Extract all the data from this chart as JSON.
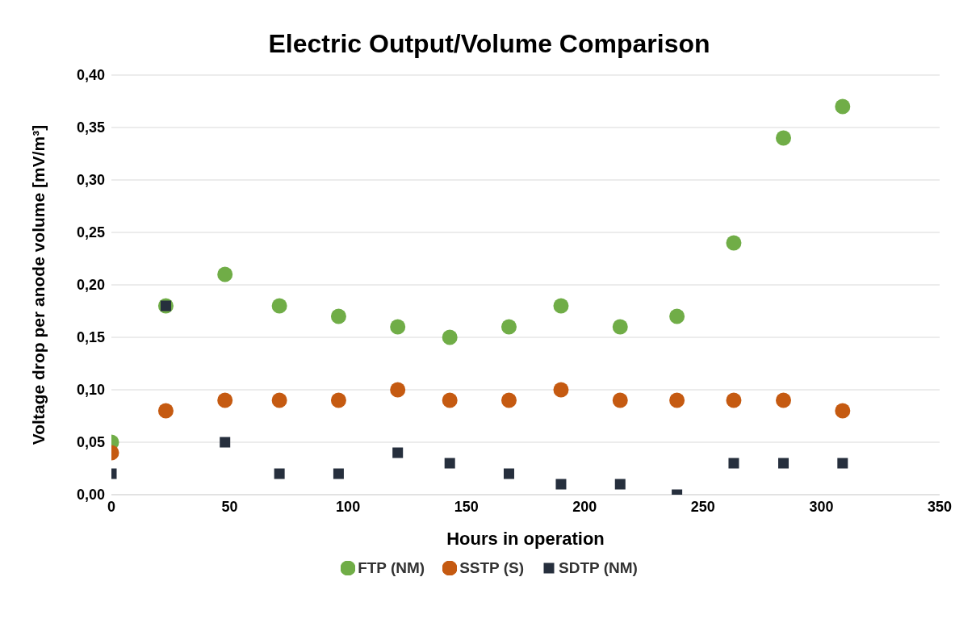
{
  "chart_data": {
    "type": "scatter",
    "title": "Electric Output/Volume Comparison",
    "xlabel": "Hours in operation",
    "ylabel": "Voltage drop per anode volume [mV/m³]",
    "x": [
      0,
      23,
      48,
      71,
      96,
      121,
      143,
      168,
      190,
      215,
      239,
      263,
      284,
      309
    ],
    "series": [
      {
        "name": "FTP (NM)",
        "color": "#70ad47",
        "marker": "circle",
        "values": [
          0.05,
          0.18,
          0.21,
          0.18,
          0.17,
          0.16,
          0.15,
          0.16,
          0.18,
          0.16,
          0.17,
          0.24,
          0.34,
          0.37
        ]
      },
      {
        "name": "SSTP (S)",
        "color": "#c55a11",
        "marker": "circle",
        "values": [
          0.04,
          0.08,
          0.09,
          0.09,
          0.09,
          0.1,
          0.09,
          0.09,
          0.1,
          0.09,
          0.09,
          0.09,
          0.09,
          0.08
        ]
      },
      {
        "name": "SDTP (NM)",
        "color": "#262f3d",
        "marker": "square",
        "values": [
          0.02,
          0.18,
          0.05,
          0.02,
          0.02,
          0.04,
          0.03,
          0.02,
          0.01,
          0.01,
          0.0,
          0.03,
          0.03,
          0.03
        ]
      }
    ],
    "xlim": [
      0,
      350
    ],
    "xticks": [
      0,
      50,
      100,
      150,
      200,
      250,
      300,
      350
    ],
    "ylim": [
      0,
      0.4
    ],
    "yticks": [
      {
        "value": 0,
        "label": "0,00"
      },
      {
        "value": 0.05,
        "label": "0,05"
      },
      {
        "value": 0.1,
        "label": "0,10"
      },
      {
        "value": 0.15,
        "label": "0,15"
      },
      {
        "value": 0.2,
        "label": "0,20"
      },
      {
        "value": 0.25,
        "label": "0,25"
      },
      {
        "value": 0.3,
        "label": "0,30"
      },
      {
        "value": 0.35,
        "label": "0,35"
      },
      {
        "value": 0.4,
        "label": "0,40"
      }
    ],
    "grid": "y",
    "legend": "bottom"
  }
}
